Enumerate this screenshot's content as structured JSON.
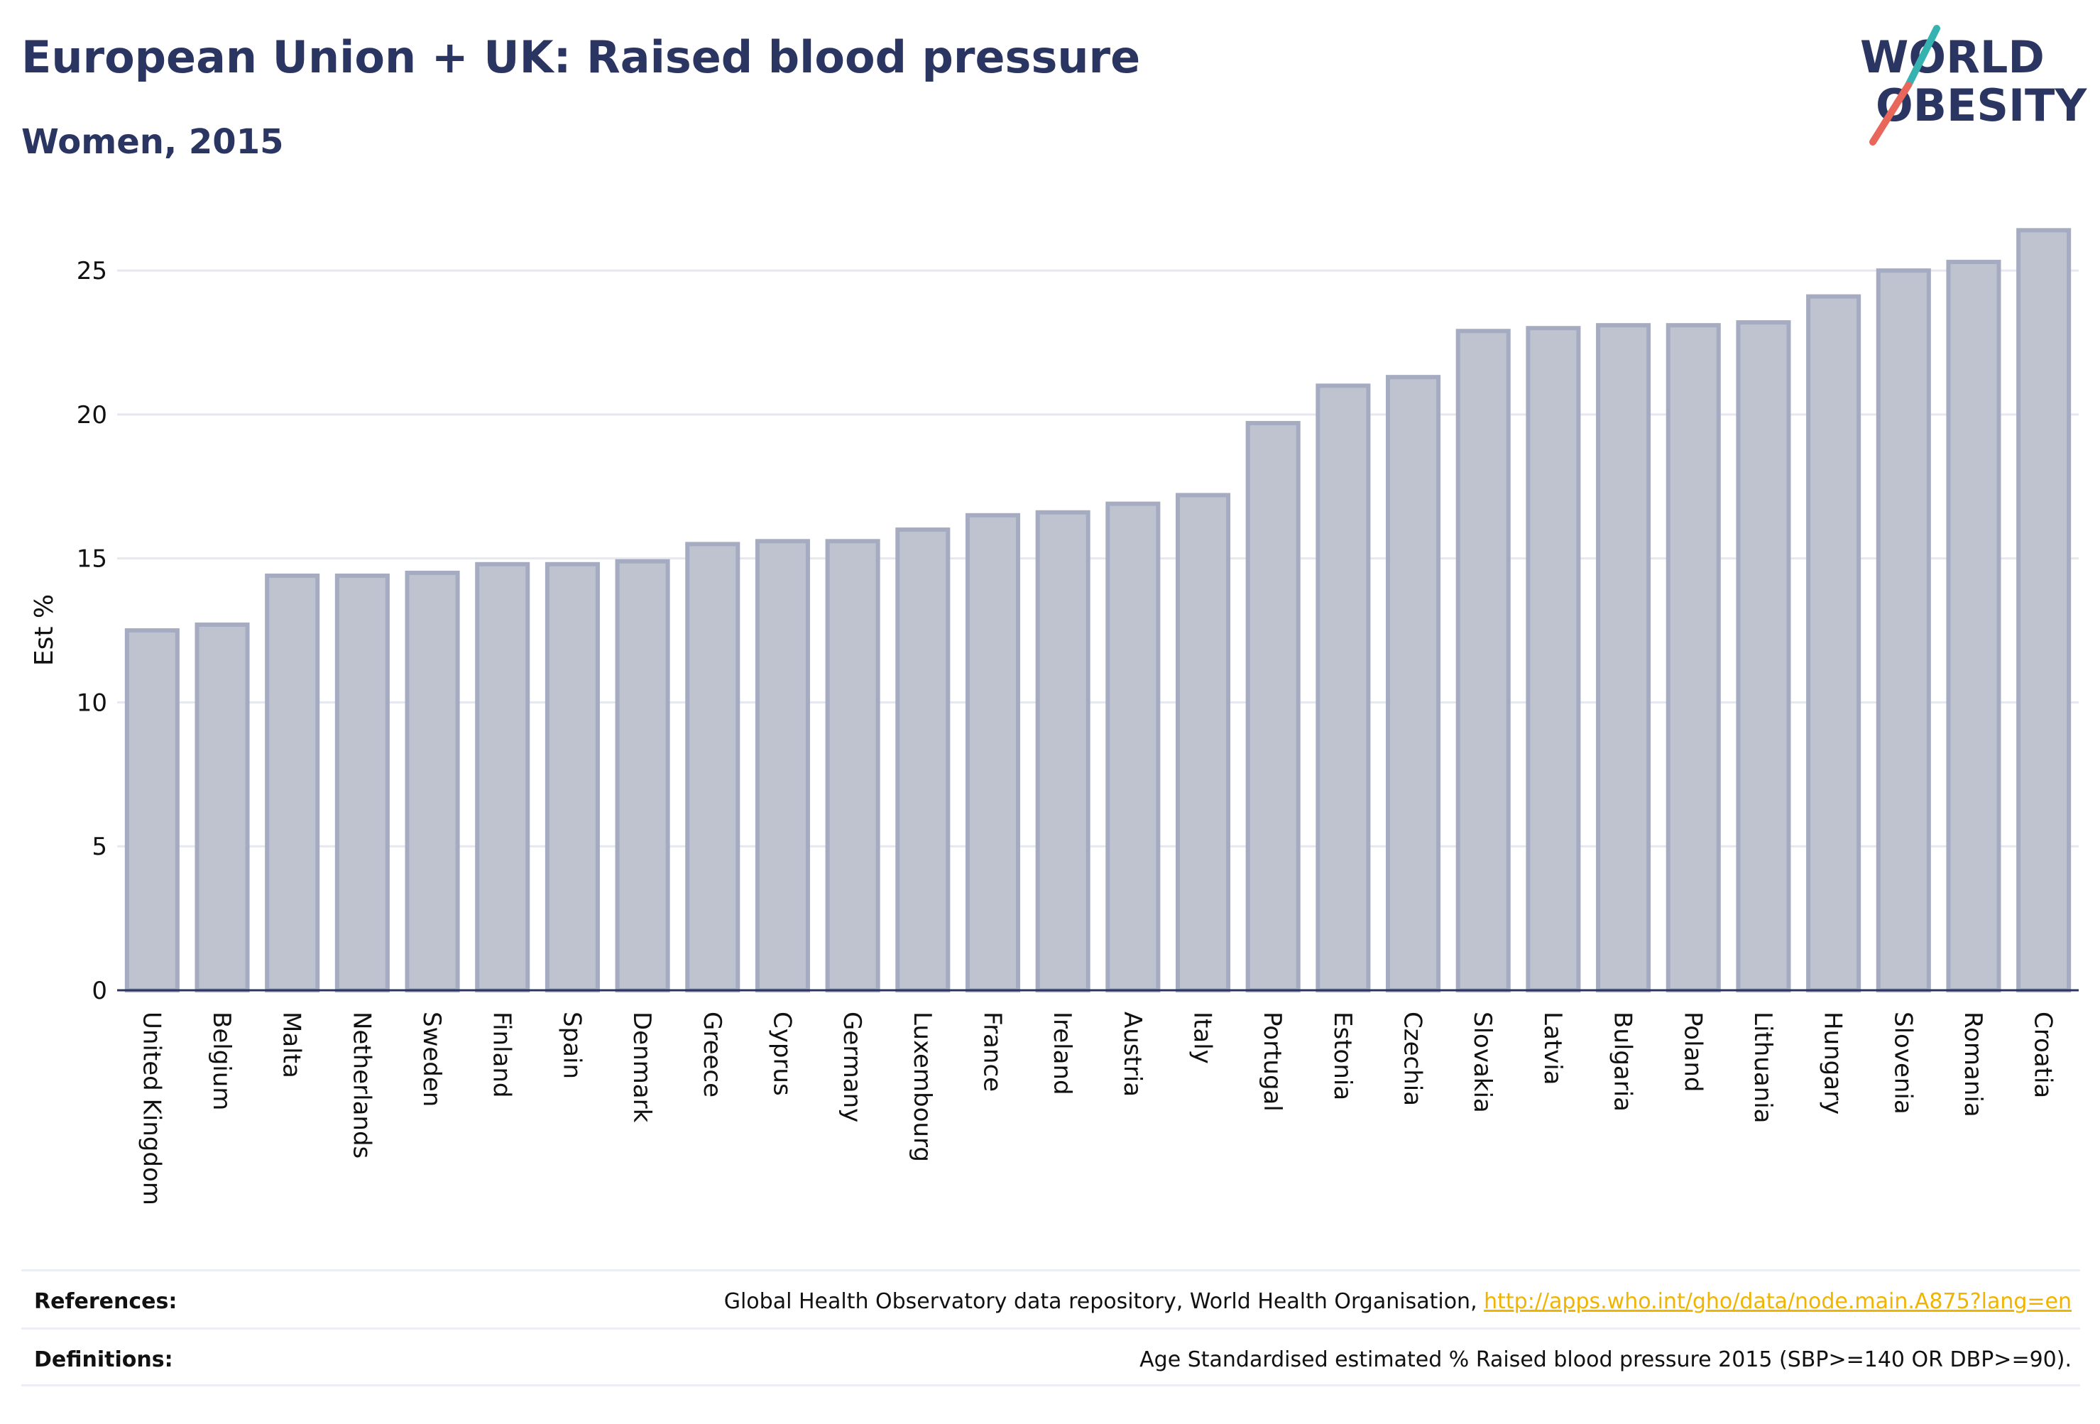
{
  "header": {
    "title": "European Union + UK: Raised blood pressure",
    "subtitle": "Women, 2015"
  },
  "logo": {
    "line1": "WORLD",
    "line2": "OBESITY",
    "text_color": "#2b3562",
    "slash_top_color": "#36b3b0",
    "slash_bottom_color": "#e8665a"
  },
  "chart_data": {
    "type": "bar",
    "ylabel": "Est %",
    "ylim": [
      0,
      27
    ],
    "yticks": [
      0,
      5,
      10,
      15,
      20,
      25
    ],
    "grid": true,
    "bar_fill": "#bfc3d0",
    "bar_stroke": "#a5abc1",
    "categories": [
      "United Kingdom",
      "Belgium",
      "Malta",
      "Netherlands",
      "Sweden",
      "Finland",
      "Spain",
      "Denmark",
      "Greece",
      "Cyprus",
      "Germany",
      "Luxembourg",
      "France",
      "Ireland",
      "Austria",
      "Italy",
      "Portugal",
      "Estonia",
      "Czechia",
      "Slovakia",
      "Latvia",
      "Bulgaria",
      "Poland",
      "Lithuania",
      "Hungary",
      "Slovenia",
      "Romania",
      "Croatia"
    ],
    "values": [
      12.5,
      12.7,
      14.4,
      14.4,
      14.5,
      14.8,
      14.8,
      14.9,
      15.5,
      15.6,
      15.6,
      16.0,
      16.5,
      16.6,
      16.9,
      17.2,
      19.7,
      21.0,
      21.3,
      22.9,
      23.0,
      23.1,
      23.1,
      23.2,
      24.1,
      25.0,
      25.3,
      26.4
    ]
  },
  "footer": {
    "references_label": "References:",
    "references_text": "Global Health Observatory data repository, World Health Organisation, ",
    "references_link": "http://apps.who.int/gho/data/node.main.A875?lang=en",
    "definitions_label": "Definitions:",
    "definitions_text": "Age Standardised estimated % Raised blood pressure 2015 (SBP>=140 OR DBP>=90)."
  }
}
